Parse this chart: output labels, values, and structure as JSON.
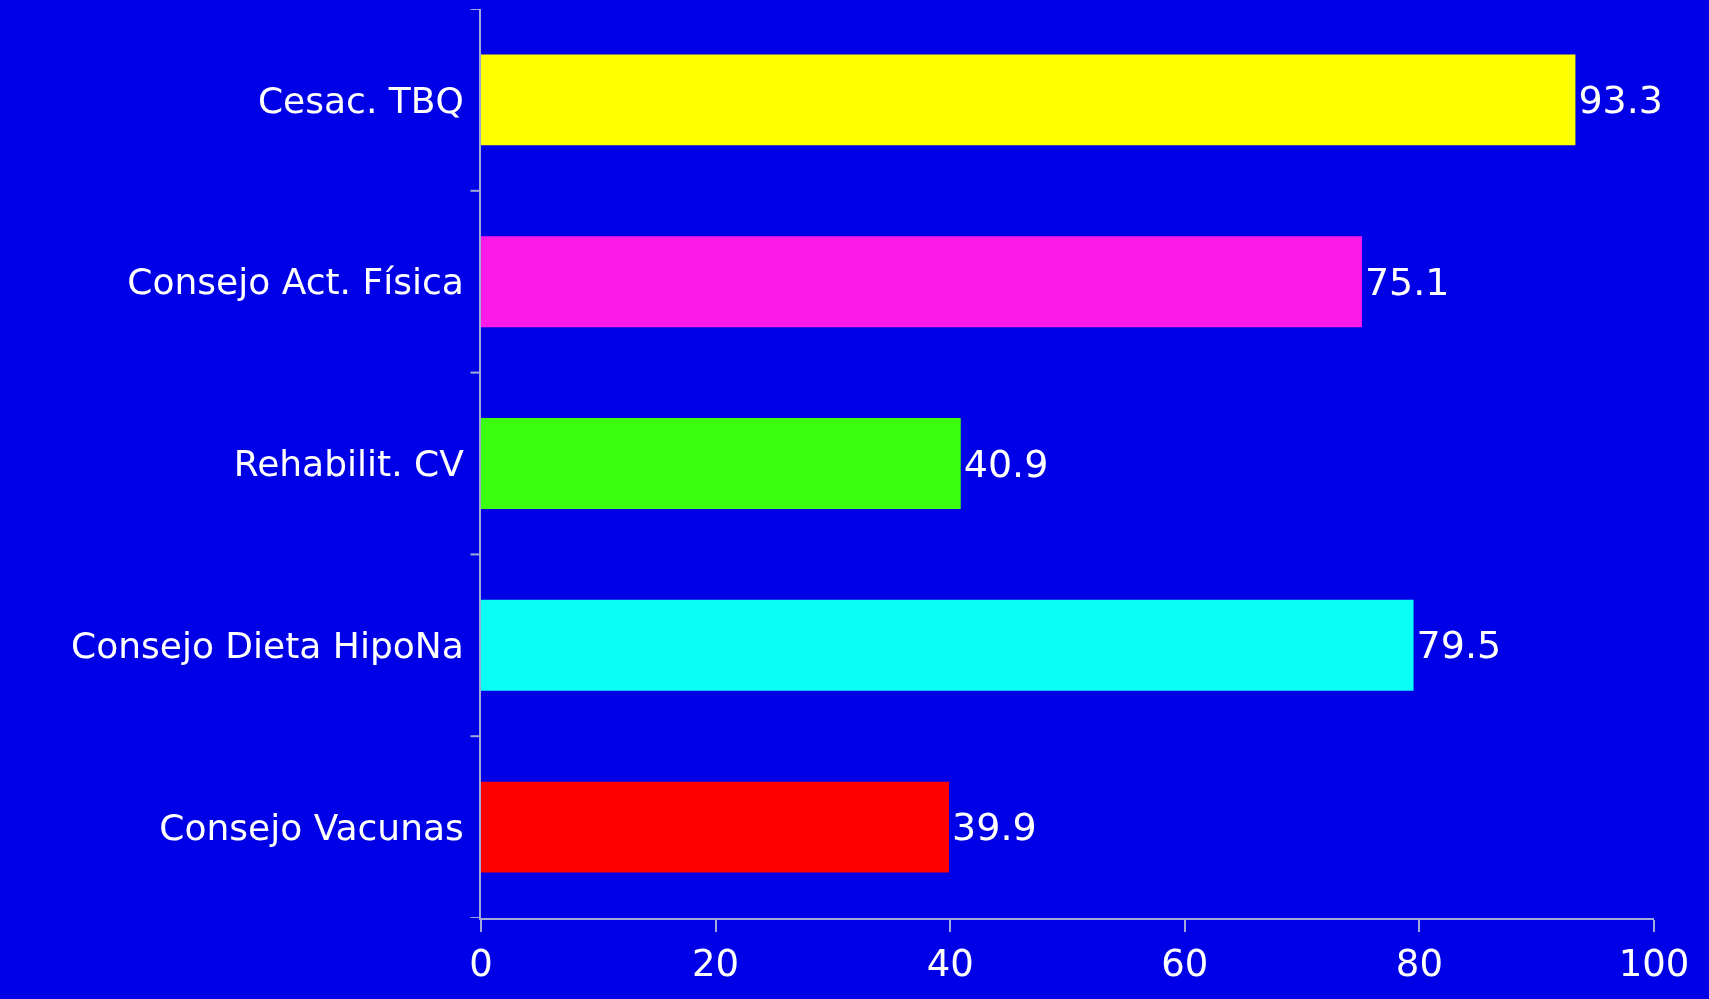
{
  "chart_data": {
    "type": "bar",
    "orientation": "horizontal",
    "categories": [
      "Cesac. TBQ",
      "Consejo Act. Física",
      "Rehabilit. CV",
      "Consejo Dieta HipoNa",
      "Consejo Vacunas"
    ],
    "values": [
      93.3,
      75.1,
      40.9,
      79.5,
      39.9
    ],
    "colors": [
      "#ffff00",
      "#fc1ae8",
      "#3cff10",
      "#0cfdf5",
      "#ff0000"
    ],
    "xlim": [
      0,
      100
    ],
    "xticks": [
      0,
      20,
      40,
      60,
      80,
      100
    ],
    "data_labels": true,
    "grid": false,
    "legend": false
  }
}
